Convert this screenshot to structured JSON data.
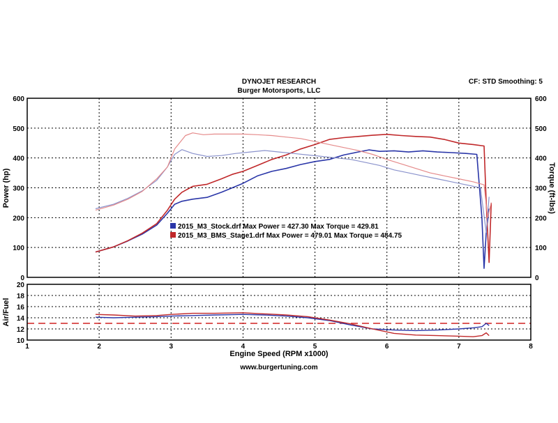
{
  "header": {
    "title": "DYNOJET RESEARCH",
    "subtitle": "Burger Motorsports, LLC",
    "settings": "CF: STD  Smoothing: 5"
  },
  "footer": {
    "url": "www.burgertuning.com"
  },
  "colors": {
    "stock": "#2a36a8",
    "stock_light": "#8a92cc",
    "stage1": "#c0282a",
    "stage1_light": "#e58a8a",
    "reference_line": "#d02020"
  },
  "chart_data": [
    {
      "type": "line",
      "xlabel": "Engine Speed (RPM x1000)",
      "ylabel": "Power (hp)",
      "ylabel_right": "Torque (ft-lbs)",
      "xlim": [
        1,
        8
      ],
      "ylim": [
        0,
        600
      ],
      "x_ticks": [
        "1",
        "2",
        "3",
        "4",
        "5",
        "6",
        "7",
        "8"
      ],
      "y_ticks": [
        "0",
        "100",
        "200",
        "300",
        "400",
        "500",
        "600"
      ],
      "y_ticks_right": [
        "0",
        "100",
        "200",
        "300",
        "400",
        "500",
        "600"
      ],
      "grid": true,
      "legend": [
        {
          "text": "2015_M3_Stock.drf Max Power = 427.30     Max Torque = 429.81",
          "color": "#2a36a8"
        },
        {
          "text": "2015_M3_BMS_Stage1.drf Max Power = 479.01     Max Torque = 484.75",
          "color": "#c0282a"
        }
      ],
      "series": [
        {
          "name": "2015_M3_Stock.drf",
          "kind": "power",
          "x": [
            1.95,
            2.2,
            2.4,
            2.6,
            2.8,
            2.95,
            3.05,
            3.15,
            3.3,
            3.5,
            3.7,
            3.85,
            4.0,
            4.2,
            4.4,
            4.6,
            4.8,
            5.0,
            5.2,
            5.4,
            5.6,
            5.75,
            5.9,
            6.1,
            6.3,
            6.5,
            6.7,
            6.9,
            7.1,
            7.25,
            7.32,
            7.35,
            7.38,
            7.42
          ],
          "y": [
            85,
            102,
            122,
            145,
            175,
            215,
            245,
            255,
            262,
            268,
            285,
            300,
            315,
            340,
            355,
            365,
            378,
            388,
            395,
            410,
            420,
            427,
            422,
            424,
            420,
            424,
            420,
            418,
            415,
            412,
            200,
            30,
            150,
            230
          ]
        },
        {
          "name": "2015_M3_BMS_Stage1.drf",
          "kind": "power",
          "x": [
            1.95,
            2.2,
            2.4,
            2.6,
            2.8,
            2.95,
            3.05,
            3.15,
            3.3,
            3.5,
            3.7,
            3.85,
            4.0,
            4.2,
            4.4,
            4.6,
            4.8,
            5.0,
            5.2,
            5.4,
            5.6,
            5.8,
            6.0,
            6.2,
            6.4,
            6.6,
            6.8,
            7.0,
            7.2,
            7.35,
            7.38,
            7.42,
            7.45
          ],
          "y": [
            85,
            102,
            123,
            148,
            180,
            225,
            262,
            285,
            305,
            312,
            330,
            345,
            355,
            375,
            395,
            410,
            430,
            445,
            462,
            468,
            472,
            476,
            479,
            475,
            472,
            470,
            462,
            450,
            445,
            440,
            250,
            50,
            250
          ]
        },
        {
          "name": "2015_M3_Stock.drf",
          "kind": "torque",
          "x": [
            1.95,
            2.2,
            2.4,
            2.6,
            2.8,
            2.95,
            3.05,
            3.15,
            3.3,
            3.5,
            3.7,
            3.9,
            4.1,
            4.3,
            4.5,
            4.7,
            4.9,
            5.1,
            5.3,
            5.5,
            5.7,
            5.9,
            6.1,
            6.3,
            6.5,
            6.7,
            6.9,
            7.1,
            7.3,
            7.38,
            7.42
          ],
          "y": [
            230,
            245,
            265,
            290,
            325,
            370,
            412,
            428,
            415,
            405,
            408,
            415,
            420,
            425,
            420,
            415,
            410,
            405,
            400,
            395,
            385,
            375,
            360,
            350,
            340,
            330,
            320,
            310,
            300,
            150,
            270
          ]
        },
        {
          "name": "2015_M3_BMS_Stage1.drf",
          "kind": "torque",
          "x": [
            1.95,
            2.2,
            2.4,
            2.6,
            2.8,
            2.95,
            3.05,
            3.2,
            3.3,
            3.45,
            3.6,
            3.8,
            4.0,
            4.2,
            4.4,
            4.6,
            4.8,
            5.0,
            5.2,
            5.4,
            5.6,
            5.8,
            6.0,
            6.2,
            6.4,
            6.6,
            6.8,
            7.0,
            7.2,
            7.35,
            7.4,
            7.45
          ],
          "y": [
            225,
            242,
            262,
            288,
            330,
            370,
            430,
            475,
            484,
            478,
            480,
            480,
            480,
            478,
            475,
            470,
            465,
            455,
            445,
            435,
            425,
            412,
            395,
            380,
            365,
            350,
            340,
            330,
            320,
            310,
            200,
            250
          ]
        }
      ]
    },
    {
      "type": "line",
      "xlabel": "",
      "ylabel": "Air/Fuel",
      "xlim": [
        1,
        8
      ],
      "ylim": [
        10,
        20
      ],
      "y_ticks": [
        "10",
        "12",
        "14",
        "16",
        "18",
        "20"
      ],
      "grid": true,
      "reference_line": 13,
      "series": [
        {
          "name": "2015_M3_Stock.drf",
          "x": [
            1.95,
            2.2,
            2.5,
            2.8,
            3.0,
            3.3,
            3.6,
            4.0,
            4.3,
            4.6,
            4.9,
            5.2,
            5.5,
            5.8,
            6.1,
            6.4,
            6.7,
            7.0,
            7.2,
            7.32,
            7.38,
            7.42
          ],
          "y": [
            14.1,
            14.0,
            14.1,
            14.2,
            14.3,
            14.4,
            14.5,
            14.6,
            14.5,
            14.3,
            14.0,
            13.5,
            12.7,
            12.0,
            11.8,
            11.7,
            11.8,
            12.0,
            12.2,
            12.4,
            13.0,
            12.6
          ]
        },
        {
          "name": "2015_M3_BMS_Stage1.drf",
          "x": [
            1.95,
            2.2,
            2.5,
            2.8,
            3.0,
            3.3,
            3.6,
            4.0,
            4.3,
            4.6,
            4.9,
            5.2,
            5.5,
            5.8,
            6.1,
            6.4,
            6.7,
            7.0,
            7.2,
            7.32,
            7.38,
            7.42
          ],
          "y": [
            14.6,
            14.5,
            14.3,
            14.4,
            14.6,
            14.8,
            14.8,
            14.9,
            14.7,
            14.5,
            14.2,
            13.6,
            12.9,
            12.0,
            11.2,
            10.9,
            10.8,
            10.7,
            10.6,
            10.8,
            11.3,
            10.8
          ]
        }
      ]
    }
  ]
}
